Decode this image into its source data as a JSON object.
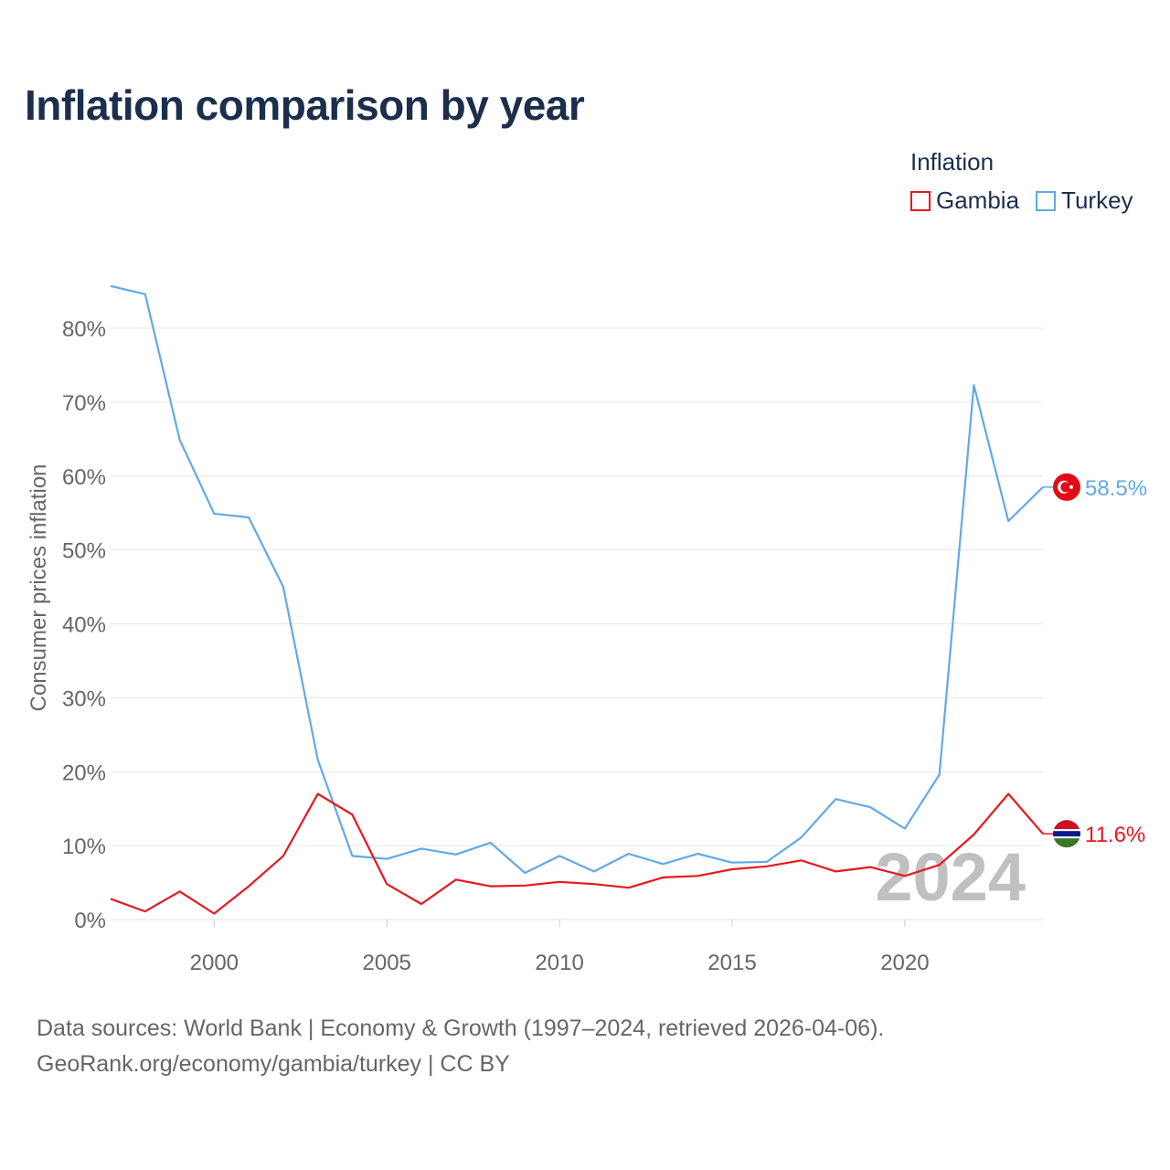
{
  "title": "Inflation comparison by year",
  "legend": {
    "title": "Inflation",
    "items": [
      {
        "label": "Gambia",
        "color": "#e8181f"
      },
      {
        "label": "Turkey",
        "color": "#62a9e8"
      }
    ]
  },
  "year_watermark": "2024",
  "end_labels": {
    "turkey": "58.5%",
    "gambia": "11.6%"
  },
  "source": {
    "line1": "Data sources: World Bank | Economy & Growth (1997–2024, retrieved 2026-04-06).",
    "line2": "GeoRank.org/economy/gambia/turkey | CC BY"
  },
  "chart_data": {
    "type": "line",
    "title": "Inflation comparison by year",
    "xlabel": "",
    "ylabel": "Consumer prices inflation",
    "xlim": [
      1997,
      2024
    ],
    "ylim": [
      0,
      80
    ],
    "y_ticks": [
      0,
      10,
      20,
      30,
      40,
      50,
      60,
      70,
      80
    ],
    "y_tick_labels": [
      "0%",
      "10%",
      "20%",
      "30%",
      "40%",
      "50%",
      "60%",
      "70%",
      "80%"
    ],
    "x_ticks": [
      2000,
      2005,
      2010,
      2015,
      2020
    ],
    "x_tick_labels": [
      "2000",
      "2005",
      "2010",
      "2015",
      "2020"
    ],
    "x": [
      1997,
      1998,
      1999,
      2000,
      2001,
      2002,
      2003,
      2004,
      2005,
      2006,
      2007,
      2008,
      2009,
      2010,
      2011,
      2012,
      2013,
      2014,
      2015,
      2016,
      2017,
      2018,
      2019,
      2020,
      2021,
      2022,
      2023,
      2024
    ],
    "series": [
      {
        "name": "Turkey",
        "color": "#62a9e8",
        "values": [
          85.7,
          84.6,
          64.9,
          54.9,
          54.4,
          45.0,
          21.6,
          8.6,
          8.2,
          9.6,
          8.8,
          10.4,
          6.3,
          8.6,
          6.5,
          8.9,
          7.5,
          8.9,
          7.7,
          7.8,
          11.1,
          16.3,
          15.2,
          12.3,
          19.6,
          72.3,
          53.9,
          58.5
        ]
      },
      {
        "name": "Gambia",
        "color": "#e8181f",
        "values": [
          2.8,
          1.1,
          3.8,
          0.8,
          4.5,
          8.6,
          17.0,
          14.2,
          4.8,
          2.1,
          5.4,
          4.5,
          4.6,
          5.1,
          4.8,
          4.3,
          5.7,
          5.9,
          6.8,
          7.2,
          8.0,
          6.5,
          7.1,
          5.9,
          7.4,
          11.5,
          17.0,
          11.6
        ]
      }
    ],
    "grid": true,
    "legend": "top-right"
  }
}
